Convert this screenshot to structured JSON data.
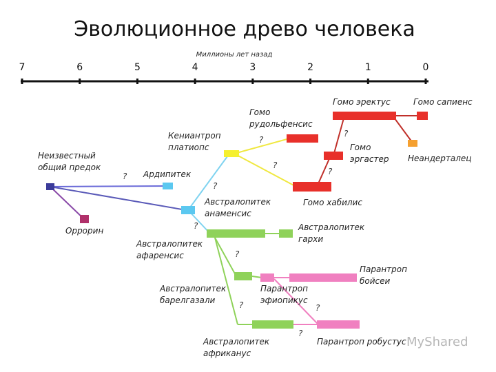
{
  "header": {
    "title": "Эволюционное древо человека"
  },
  "timeline": {
    "label": "Миллионы лет назад",
    "ticks": [
      7,
      6,
      5,
      4,
      3,
      2,
      1,
      0
    ]
  },
  "nodes": [
    {
      "label": [
        "Неизвестный",
        "общий предок"
      ]
    },
    {
      "label": [
        "Оррорин"
      ]
    },
    {
      "label": [
        "Ардипитек"
      ]
    },
    {
      "label": [
        "Австралопитек",
        "анаменсис"
      ]
    },
    {
      "label": [
        "Кениантроп",
        "платиопс"
      ]
    },
    {
      "label": [
        "Гомо",
        "рудольфенсис"
      ]
    },
    {
      "label": [
        "Гомо хабилис"
      ]
    },
    {
      "label": [
        "Гомо",
        "эргастер"
      ]
    },
    {
      "label": [
        "Гомо эректус"
      ]
    },
    {
      "label": [
        "Гомо сапиенс"
      ]
    },
    {
      "label": [
        "Неандерталец"
      ]
    },
    {
      "label": [
        "Австралопитек",
        "афаренсис"
      ]
    },
    {
      "label": [
        "Австралопитек",
        "гархи"
      ]
    },
    {
      "label": [
        "Парантроп",
        "эфиопикус"
      ]
    },
    {
      "label": [
        "Парантроп",
        "бойсеи"
      ]
    },
    {
      "label": [
        "Австралопитек",
        "барелгазали"
      ]
    },
    {
      "label": [
        "Австралопитек",
        "африканус"
      ]
    },
    {
      "label": [
        "Парантроп робустус"
      ]
    }
  ],
  "uncertainty_marks": [
    "?",
    "?",
    "?",
    "?",
    "?",
    "?",
    "?",
    "?",
    "?",
    "?",
    "?"
  ],
  "watermark": "MyShared"
}
